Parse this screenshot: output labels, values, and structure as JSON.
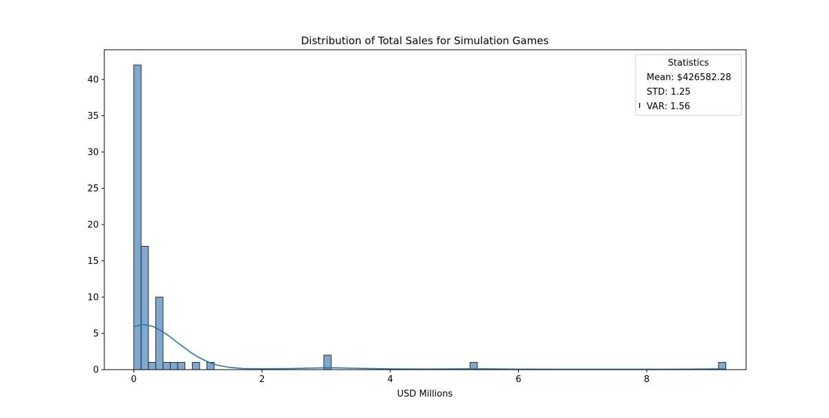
{
  "chart_data": {
    "type": "bar",
    "title": "Distribution of Total Sales for Simulation Games",
    "xlabel": "USD Millions",
    "ylabel": "",
    "xlim": [
      -0.46,
      9.55
    ],
    "ylim": [
      0,
      44.1
    ],
    "xticks": [
      0,
      2,
      4,
      6,
      8
    ],
    "yticks": [
      0,
      5,
      10,
      15,
      20,
      25,
      30,
      35,
      40
    ],
    "bin_width": 0.114,
    "bins": [
      {
        "x0": 0.0,
        "count": 42
      },
      {
        "x0": 0.114,
        "count": 17
      },
      {
        "x0": 0.228,
        "count": 1
      },
      {
        "x0": 0.342,
        "count": 10
      },
      {
        "x0": 0.456,
        "count": 1
      },
      {
        "x0": 0.57,
        "count": 1
      },
      {
        "x0": 0.684,
        "count": 1
      },
      {
        "x0": 0.912,
        "count": 1
      },
      {
        "x0": 1.14,
        "count": 1
      },
      {
        "x0": 2.964,
        "count": 2
      },
      {
        "x0": 5.244,
        "count": 1
      },
      {
        "x0": 9.12,
        "count": 1
      }
    ],
    "kde": {
      "x": [
        0.0,
        0.05,
        0.1,
        0.15,
        0.2,
        0.3,
        0.4,
        0.5,
        0.6,
        0.7,
        0.8,
        0.9,
        1.0,
        1.1,
        1.2,
        1.3,
        1.5,
        1.7,
        2.0,
        2.4,
        2.8,
        3.0,
        3.2,
        3.6,
        4.0,
        4.6,
        5.0,
        5.3,
        5.6,
        6.0,
        6.6,
        7.2,
        7.8,
        8.4,
        8.8,
        9.1,
        9.23
      ],
      "y": [
        5.9,
        6.05,
        6.15,
        6.2,
        6.15,
        5.95,
        5.5,
        4.95,
        4.3,
        3.6,
        2.95,
        2.3,
        1.75,
        1.3,
        0.9,
        0.62,
        0.3,
        0.15,
        0.12,
        0.14,
        0.22,
        0.26,
        0.24,
        0.16,
        0.1,
        0.08,
        0.1,
        0.12,
        0.1,
        0.07,
        0.05,
        0.05,
        0.05,
        0.06,
        0.08,
        0.1,
        0.1
      ]
    },
    "colors": {
      "bar_fill": "#7fa9cf",
      "bar_edge": "#1a1a1a",
      "kde_line": "#1f77b4"
    },
    "legend": {
      "position": "top-right",
      "title": "Statistics",
      "entries": [
        "Mean: $426582.28",
        "STD: 1.25",
        "VAR: 1.56"
      ]
    },
    "grid": false
  }
}
